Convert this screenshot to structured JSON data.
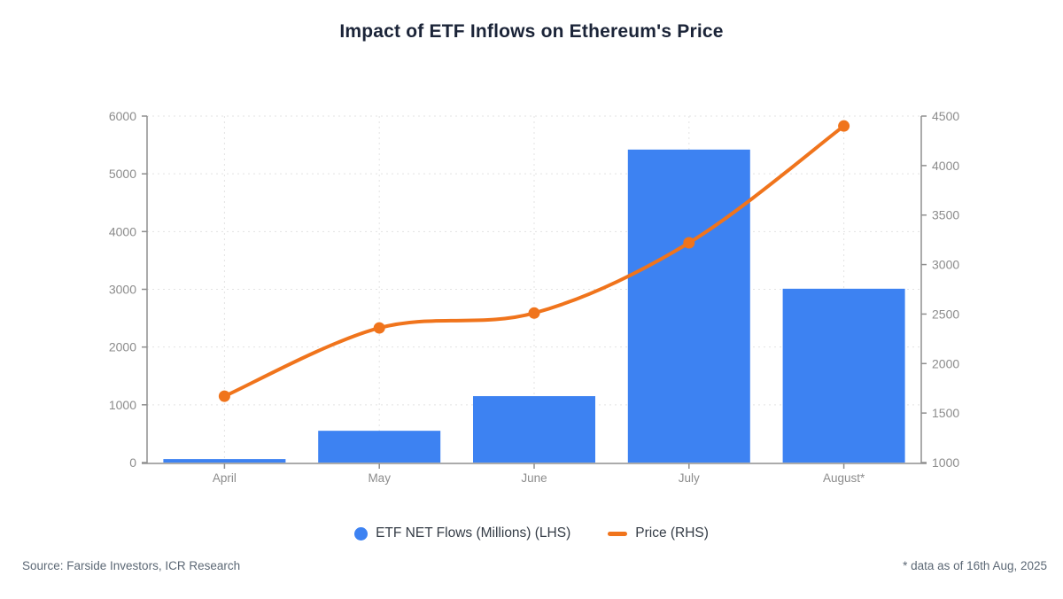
{
  "title": "Impact of ETF Inflows on Ethereum's Price",
  "chart_data": {
    "type": "combo",
    "categories": [
      "April",
      "May",
      "June",
      "July",
      "August*"
    ],
    "series": [
      {
        "name": "ETF NET Flows (Millions) (LHS)",
        "type": "bar",
        "axis": "left",
        "color": "#3d82f2",
        "values": [
          60,
          550,
          1150,
          5420,
          3010
        ]
      },
      {
        "name": "Price (RHS)",
        "type": "line",
        "axis": "right",
        "color": "#f0741c",
        "values": [
          1670,
          2360,
          2510,
          3220,
          4400
        ]
      }
    ],
    "left_axis": {
      "min": 0,
      "max": 6000,
      "ticks": [
        0,
        1000,
        2000,
        3000,
        4000,
        5000,
        6000
      ]
    },
    "right_axis": {
      "min": 1000,
      "max": 4500,
      "ticks": [
        1000,
        1500,
        2000,
        2500,
        3000,
        3500,
        4000,
        4500
      ]
    },
    "grid": "dashed",
    "legend_position": "bottom"
  },
  "legend": {
    "items": [
      {
        "label": "ETF NET Flows (Millions) (LHS)",
        "marker": "circle",
        "color": "#3d82f2"
      },
      {
        "label": "Price (RHS)",
        "marker": "dash",
        "color": "#f0741c"
      }
    ]
  },
  "footer": {
    "source": "Source: Farside Investors, ICR Research",
    "note": "* data as of 16th Aug, 2025"
  },
  "colors": {
    "title": "#1b2438",
    "axis_line": "#8f8f8f",
    "tick_label": "#8c8c8c",
    "gridline": "#e3e3e3",
    "footer_text": "#5c6875",
    "background": "#ffffff"
  }
}
